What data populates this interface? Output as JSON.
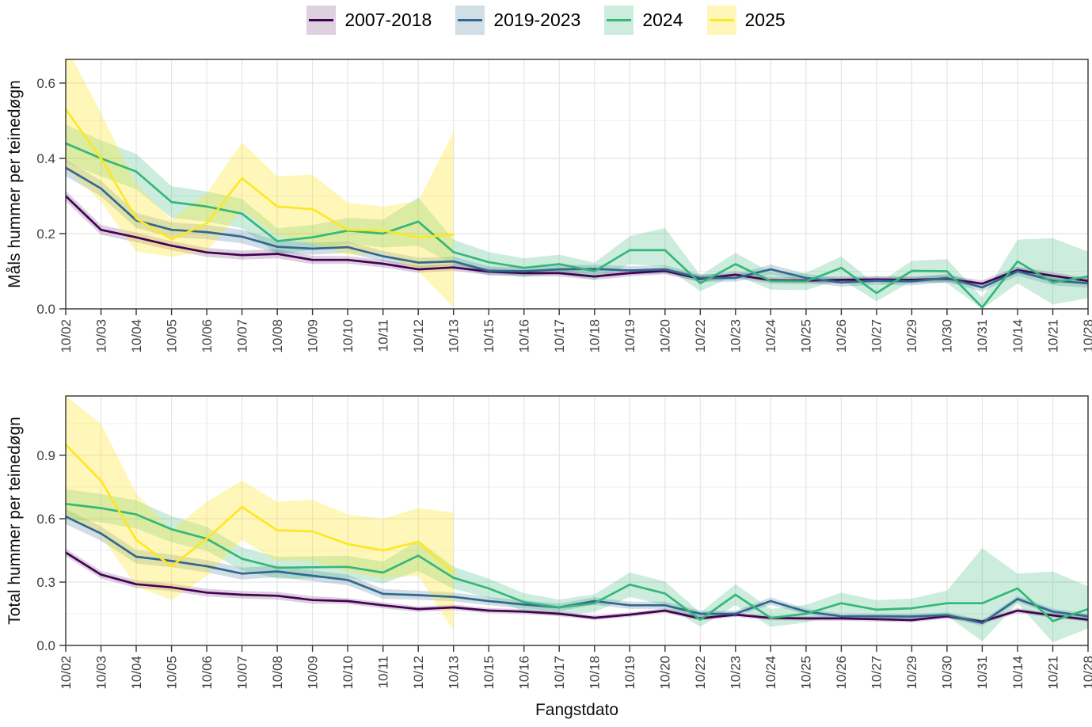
{
  "legend": {
    "position": "top",
    "items": [
      {
        "label": "2007-2018",
        "line": "#440154",
        "fill": "rgba(68,1,84,0.18)"
      },
      {
        "label": "2019-2023",
        "line": "#31688E",
        "fill": "rgba(49,104,142,0.22)"
      },
      {
        "label": "2024",
        "line": "#35B779",
        "fill": "rgba(53,183,121,0.25)"
      },
      {
        "label": "2025",
        "line": "#FDE725",
        "fill": "rgba(253,231,37,0.32)"
      }
    ]
  },
  "xlabel": "Fangstdato",
  "chart_data": [
    {
      "type": "line",
      "title": "",
      "ylabel": "Måls hummer per teinedøgn",
      "xlabel": "",
      "grid": true,
      "legend_position": "top",
      "ylim": [
        0,
        0.663
      ],
      "yticks": [
        0.0,
        0.2,
        0.4,
        0.6
      ],
      "ytick_labels": [
        "0.0",
        "0.2",
        "0.4",
        "0.6"
      ],
      "yminor": [
        0.1,
        0.3,
        0.5
      ],
      "categories": [
        "10/02",
        "10/03",
        "10/04",
        "10/05",
        "10/06",
        "10/07",
        "10/08",
        "10/09",
        "10/10",
        "10/11",
        "10/12",
        "10/13",
        "10/15",
        "10/16",
        "10/17",
        "10/18",
        "10/19",
        "10/20",
        "10/22",
        "10/23",
        "10/24",
        "10/25",
        "10/26",
        "10/27",
        "10/29",
        "10/30",
        "10/31",
        "10/14",
        "10/21",
        "10/28"
      ],
      "series": [
        {
          "name": "2007-2018",
          "color": "#440154",
          "fill": "rgba(68,1,84,0.18)",
          "values": [
            0.3,
            0.21,
            0.19,
            0.168,
            0.15,
            0.143,
            0.146,
            0.13,
            0.13,
            0.12,
            0.105,
            0.11,
            0.099,
            0.095,
            0.095,
            0.086,
            0.095,
            0.101,
            0.08,
            0.091,
            0.076,
            0.075,
            0.077,
            0.078,
            0.077,
            0.08,
            0.067,
            0.103,
            0.088,
            0.074
          ],
          "lower": [
            0.286,
            0.197,
            0.177,
            0.156,
            0.138,
            0.131,
            0.134,
            0.119,
            0.12,
            0.11,
            0.096,
            0.101,
            0.09,
            0.086,
            0.086,
            0.077,
            0.086,
            0.092,
            0.071,
            0.082,
            0.067,
            0.066,
            0.068,
            0.069,
            0.068,
            0.071,
            0.058,
            0.094,
            0.079,
            0.065
          ],
          "upper": [
            0.314,
            0.223,
            0.203,
            0.18,
            0.162,
            0.155,
            0.158,
            0.141,
            0.14,
            0.13,
            0.114,
            0.119,
            0.108,
            0.104,
            0.104,
            0.095,
            0.104,
            0.11,
            0.089,
            0.1,
            0.085,
            0.084,
            0.086,
            0.087,
            0.086,
            0.089,
            0.076,
            0.112,
            0.097,
            0.083
          ]
        },
        {
          "name": "2019-2023",
          "color": "#31688E",
          "fill": "rgba(49,104,142,0.22)",
          "values": [
            0.375,
            0.32,
            0.235,
            0.21,
            0.204,
            0.192,
            0.165,
            0.16,
            0.164,
            0.14,
            0.123,
            0.126,
            0.101,
            0.1,
            0.105,
            0.106,
            0.102,
            0.105,
            0.082,
            0.082,
            0.105,
            0.082,
            0.07,
            0.075,
            0.073,
            0.082,
            0.057,
            0.1,
            0.075,
            0.068
          ],
          "lower": [
            0.353,
            0.299,
            0.215,
            0.19,
            0.185,
            0.174,
            0.148,
            0.144,
            0.149,
            0.126,
            0.11,
            0.113,
            0.089,
            0.089,
            0.094,
            0.095,
            0.091,
            0.094,
            0.072,
            0.072,
            0.092,
            0.071,
            0.059,
            0.064,
            0.062,
            0.071,
            0.046,
            0.088,
            0.063,
            0.056
          ],
          "upper": [
            0.397,
            0.341,
            0.255,
            0.23,
            0.223,
            0.21,
            0.182,
            0.176,
            0.179,
            0.154,
            0.136,
            0.139,
            0.113,
            0.111,
            0.116,
            0.117,
            0.113,
            0.116,
            0.092,
            0.092,
            0.118,
            0.093,
            0.081,
            0.086,
            0.084,
            0.093,
            0.068,
            0.112,
            0.087,
            0.08
          ]
        },
        {
          "name": "2024",
          "color": "#35B779",
          "fill": "rgba(53,183,121,0.25)",
          "values": [
            0.44,
            0.4,
            0.365,
            0.284,
            0.272,
            0.253,
            0.18,
            0.19,
            0.208,
            0.2,
            0.232,
            0.151,
            0.124,
            0.109,
            0.119,
            0.1,
            0.156,
            0.156,
            0.068,
            0.119,
            0.074,
            0.073,
            0.109,
            0.042,
            0.101,
            0.1,
            0.004,
            0.126,
            0.07,
            0.086
          ],
          "lower": [
            0.39,
            0.352,
            0.318,
            0.242,
            0.232,
            0.214,
            0.146,
            0.157,
            0.174,
            0.163,
            0.168,
            0.118,
            0.097,
            0.084,
            0.094,
            0.077,
            0.119,
            0.112,
            0.047,
            0.089,
            0.051,
            0.05,
            0.079,
            0.02,
            0.074,
            0.068,
            0.0,
            0.068,
            0.012,
            0.028
          ],
          "upper": [
            0.49,
            0.448,
            0.412,
            0.326,
            0.312,
            0.292,
            0.214,
            0.223,
            0.242,
            0.237,
            0.296,
            0.184,
            0.151,
            0.134,
            0.144,
            0.123,
            0.193,
            0.215,
            0.089,
            0.149,
            0.097,
            0.096,
            0.139,
            0.064,
            0.128,
            0.132,
            0.03,
            0.184,
            0.188,
            0.152
          ]
        },
        {
          "name": "2025",
          "color": "#FDE725",
          "fill": "rgba(253,231,37,0.32)",
          "values": [
            0.53,
            0.4,
            0.24,
            0.185,
            0.227,
            0.347,
            0.272,
            0.265,
            0.21,
            0.208,
            0.19,
            0.197
          ],
          "lower": [
            0.375,
            0.285,
            0.152,
            0.138,
            0.153,
            0.263,
            0.193,
            0.173,
            0.143,
            0.148,
            0.1,
            0.004
          ],
          "upper": [
            0.7,
            0.52,
            0.33,
            0.237,
            0.307,
            0.442,
            0.352,
            0.357,
            0.282,
            0.272,
            0.287,
            0.47
          ]
        }
      ]
    },
    {
      "type": "line",
      "title": "",
      "ylabel": "Total hummer per teinedøgn",
      "xlabel": "Fangstdato",
      "grid": true,
      "legend_position": "top",
      "ylim": [
        0,
        1.181
      ],
      "yticks": [
        0.0,
        0.3,
        0.6,
        0.9
      ],
      "ytick_labels": [
        "0.0",
        "0.3",
        "0.6",
        "0.9"
      ],
      "yminor": [
        0.15,
        0.45,
        0.75,
        1.05
      ],
      "categories": [
        "10/02",
        "10/03",
        "10/04",
        "10/05",
        "10/06",
        "10/07",
        "10/08",
        "10/09",
        "10/10",
        "10/11",
        "10/12",
        "10/13",
        "10/15",
        "10/16",
        "10/17",
        "10/18",
        "10/19",
        "10/20",
        "10/22",
        "10/23",
        "10/24",
        "10/25",
        "10/26",
        "10/27",
        "10/29",
        "10/30",
        "10/31",
        "10/14",
        "10/21",
        "10/28"
      ],
      "series": [
        {
          "name": "2007-2018",
          "color": "#440154",
          "fill": "rgba(68,1,84,0.18)",
          "values": [
            0.44,
            0.335,
            0.29,
            0.275,
            0.25,
            0.24,
            0.235,
            0.215,
            0.21,
            0.19,
            0.172,
            0.18,
            0.165,
            0.16,
            0.15,
            0.131,
            0.146,
            0.165,
            0.128,
            0.146,
            0.13,
            0.128,
            0.128,
            0.124,
            0.12,
            0.138,
            0.113,
            0.165,
            0.142,
            0.122
          ],
          "lower": [
            0.422,
            0.317,
            0.272,
            0.257,
            0.232,
            0.222,
            0.217,
            0.197,
            0.196,
            0.176,
            0.159,
            0.167,
            0.153,
            0.148,
            0.138,
            0.12,
            0.135,
            0.154,
            0.117,
            0.135,
            0.119,
            0.117,
            0.117,
            0.113,
            0.109,
            0.127,
            0.102,
            0.153,
            0.131,
            0.111
          ],
          "upper": [
            0.458,
            0.353,
            0.308,
            0.293,
            0.268,
            0.258,
            0.253,
            0.233,
            0.224,
            0.204,
            0.185,
            0.193,
            0.177,
            0.172,
            0.162,
            0.142,
            0.157,
            0.176,
            0.139,
            0.157,
            0.141,
            0.139,
            0.139,
            0.135,
            0.131,
            0.149,
            0.124,
            0.177,
            0.153,
            0.133
          ]
        },
        {
          "name": "2019-2023",
          "color": "#31688E",
          "fill": "rgba(49,104,142,0.22)",
          "values": [
            0.61,
            0.53,
            0.42,
            0.4,
            0.375,
            0.34,
            0.35,
            0.33,
            0.31,
            0.244,
            0.238,
            0.23,
            0.21,
            0.194,
            0.18,
            0.21,
            0.19,
            0.19,
            0.15,
            0.15,
            0.21,
            0.16,
            0.138,
            0.138,
            0.137,
            0.144,
            0.106,
            0.22,
            0.16,
            0.138
          ],
          "lower": [
            0.574,
            0.496,
            0.388,
            0.37,
            0.346,
            0.312,
            0.323,
            0.304,
            0.285,
            0.221,
            0.216,
            0.209,
            0.19,
            0.175,
            0.162,
            0.192,
            0.173,
            0.173,
            0.135,
            0.135,
            0.192,
            0.146,
            0.125,
            0.125,
            0.124,
            0.131,
            0.093,
            0.205,
            0.146,
            0.125
          ],
          "upper": [
            0.646,
            0.564,
            0.452,
            0.43,
            0.404,
            0.368,
            0.377,
            0.356,
            0.335,
            0.267,
            0.26,
            0.251,
            0.23,
            0.213,
            0.198,
            0.228,
            0.207,
            0.207,
            0.165,
            0.165,
            0.228,
            0.174,
            0.151,
            0.151,
            0.15,
            0.157,
            0.119,
            0.235,
            0.174,
            0.151
          ]
        },
        {
          "name": "2024",
          "color": "#35B779",
          "fill": "rgba(53,183,121,0.25)",
          "values": [
            0.67,
            0.65,
            0.62,
            0.55,
            0.505,
            0.41,
            0.368,
            0.37,
            0.372,
            0.345,
            0.425,
            0.32,
            0.27,
            0.205,
            0.18,
            0.2,
            0.288,
            0.246,
            0.122,
            0.24,
            0.13,
            0.15,
            0.2,
            0.169,
            0.176,
            0.2,
            0.2,
            0.27,
            0.115,
            0.172
          ],
          "lower": [
            0.6,
            0.583,
            0.553,
            0.488,
            0.448,
            0.356,
            0.316,
            0.318,
            0.32,
            0.294,
            0.352,
            0.268,
            0.224,
            0.163,
            0.143,
            0.158,
            0.23,
            0.19,
            0.088,
            0.19,
            0.088,
            0.108,
            0.15,
            0.124,
            0.13,
            0.14,
            0.02,
            0.2,
            0.015,
            0.08
          ],
          "upper": [
            0.74,
            0.717,
            0.687,
            0.612,
            0.562,
            0.464,
            0.42,
            0.422,
            0.424,
            0.396,
            0.498,
            0.372,
            0.316,
            0.247,
            0.217,
            0.242,
            0.346,
            0.302,
            0.156,
            0.29,
            0.172,
            0.192,
            0.25,
            0.214,
            0.222,
            0.26,
            0.46,
            0.34,
            0.35,
            0.28
          ]
        },
        {
          "name": "2025",
          "color": "#FDE725",
          "fill": "rgba(253,231,37,0.32)",
          "values": [
            0.95,
            0.78,
            0.5,
            0.375,
            0.505,
            0.655,
            0.545,
            0.54,
            0.48,
            0.45,
            0.49,
            0.345
          ],
          "lower": [
            0.62,
            0.52,
            0.28,
            0.215,
            0.33,
            0.5,
            0.4,
            0.398,
            0.35,
            0.318,
            0.33,
            0.07
          ],
          "upper": [
            1.18,
            1.05,
            0.72,
            0.545,
            0.68,
            0.78,
            0.68,
            0.69,
            0.62,
            0.6,
            0.65,
            0.63
          ]
        }
      ]
    }
  ]
}
